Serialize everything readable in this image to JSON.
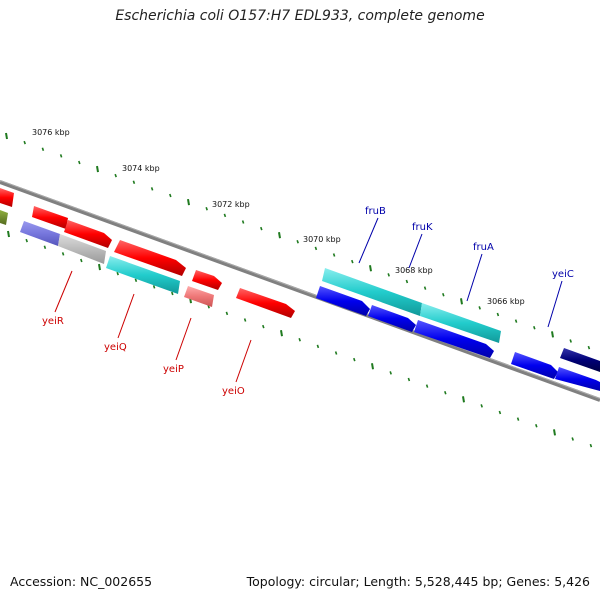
{
  "title": "Escherichia coli O157:H7 EDL933, complete genome",
  "footer": {
    "accession": "Accession: NC_002655",
    "topology": "Topology: circular; Length: 5,528,445 bp; Genes: 5,426"
  },
  "map": {
    "kbp_labels": [
      "3076 kbp",
      "3074 kbp",
      "3072 kbp",
      "3070 kbp",
      "3068 kbp",
      "3066 kbp"
    ],
    "gene_labels": [
      {
        "name": "yeiR",
        "color": "#cc0000"
      },
      {
        "name": "yeiQ",
        "color": "#cc0000"
      },
      {
        "name": "yeiP",
        "color": "#cc0000"
      },
      {
        "name": "yeiO",
        "color": "#cc0000"
      },
      {
        "name": "fruB",
        "color": "#0000aa"
      },
      {
        "name": "fruK",
        "color": "#0000aa"
      },
      {
        "name": "fruA",
        "color": "#0000aa"
      },
      {
        "name": "yeiC",
        "color": "#0000aa"
      }
    ],
    "colors": {
      "backbone": "#808080",
      "tick": "#1f7a1f",
      "red": "#ff0000",
      "cyan": "#22cccc",
      "blue": "#0000ee",
      "navy": "#000066",
      "gray": "#bbbbbb",
      "purple": "#7777dd",
      "pink": "#ee7777",
      "olive": "#6b8e23"
    }
  }
}
